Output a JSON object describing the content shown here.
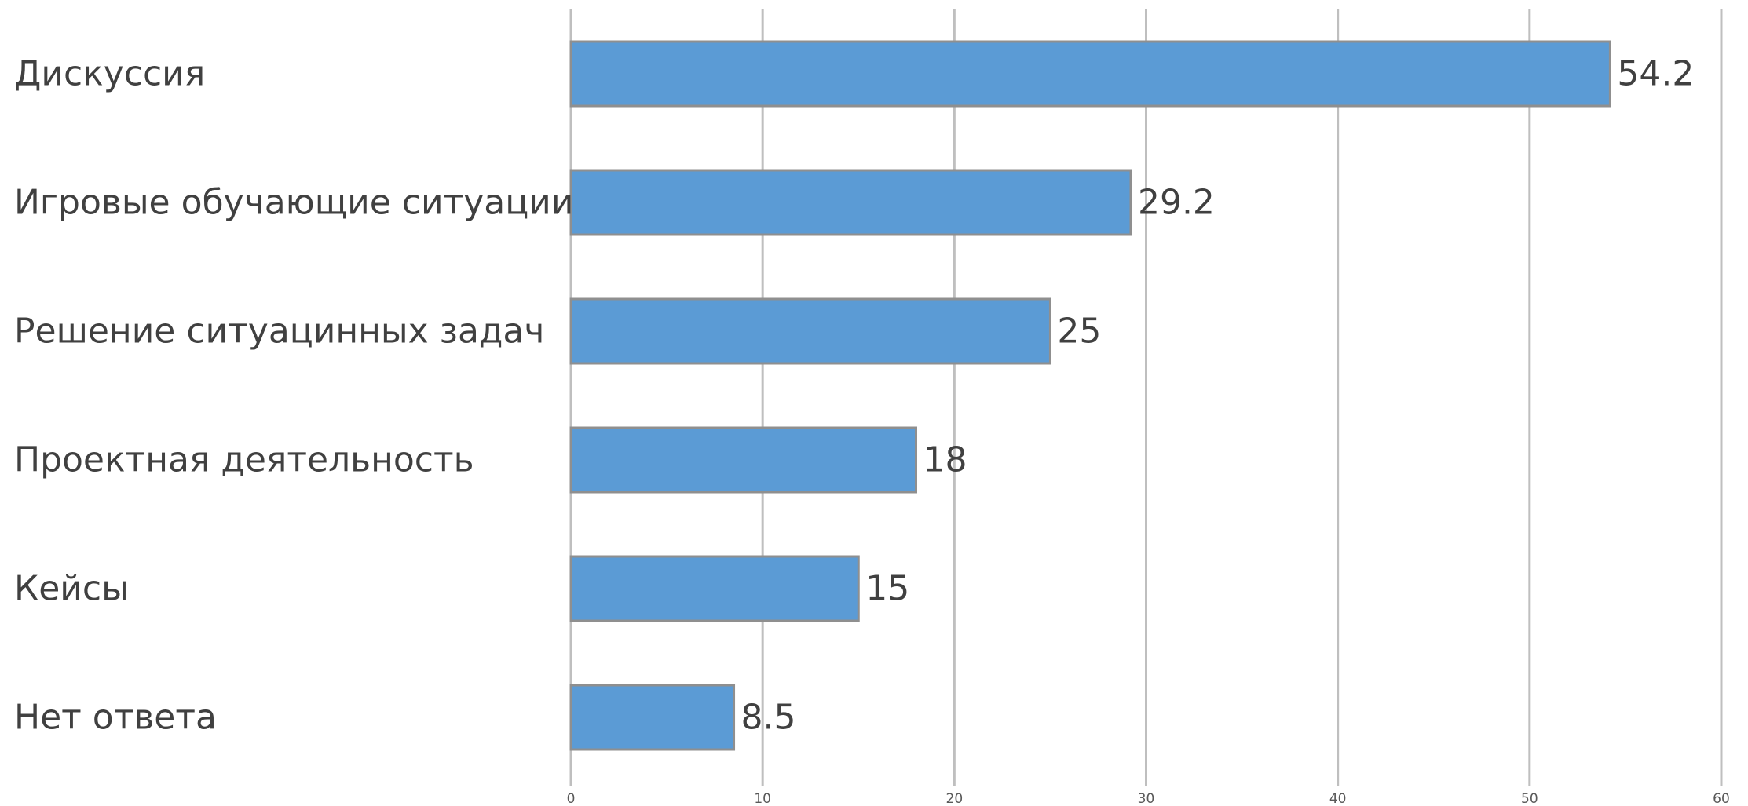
{
  "chart_data": {
    "type": "bar",
    "orientation": "horizontal",
    "categories": [
      "Дискуссия",
      "Игровые обучающие ситуации",
      "Решение ситуацинных задач",
      "Проектная деятельность",
      "Кейсы",
      "Нет ответа"
    ],
    "values": [
      54.2,
      29.2,
      25,
      18,
      15,
      8.5
    ],
    "value_labels": [
      "54.2",
      "29.2",
      "25",
      "18",
      "15",
      "8.5"
    ],
    "xticks": [
      "0",
      "10",
      "20",
      "30",
      "40",
      "50",
      "60"
    ],
    "xlim": [
      0,
      60
    ],
    "grid": "vertical",
    "legend": "none",
    "bar_color": "#5b9bd5"
  }
}
